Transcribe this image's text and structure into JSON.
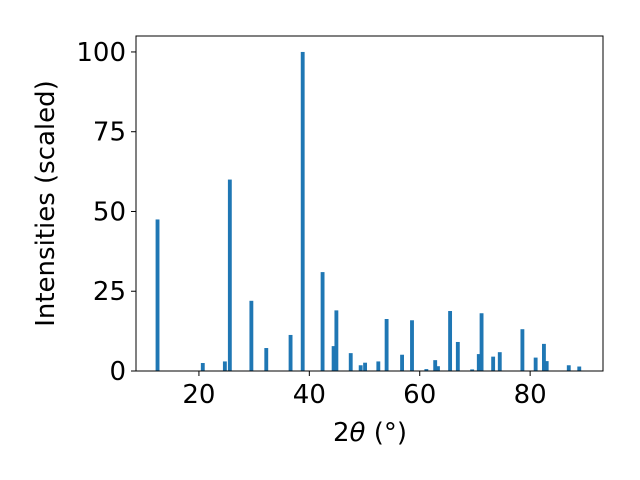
{
  "chart_data": {
    "type": "bar",
    "xlabel_main": "2",
    "xlabel_theta": "θ",
    "xlabel_unit": " (°)",
    "ylabel": "Intensities (scaled)",
    "xlim": [
      8.6,
      93.2
    ],
    "ylim": [
      0,
      105
    ],
    "grid": false,
    "bar_color": "#1f77b4",
    "bar_width_units": 0.7,
    "x_ticks": [
      20,
      40,
      60,
      80
    ],
    "y_ticks": [
      0,
      25,
      50,
      75,
      100
    ],
    "x_tick_labels": [
      "20",
      "40",
      "60",
      "80"
    ],
    "y_tick_labels": [
      "0",
      "25",
      "50",
      "75",
      "100"
    ],
    "x": [
      12.5,
      20.7,
      24.7,
      25.6,
      29.5,
      32.2,
      36.6,
      38.8,
      42.4,
      44.4,
      44.9,
      47.5,
      49.3,
      50.1,
      52.5,
      54.0,
      56.8,
      58.6,
      61.2,
      62.8,
      63.3,
      65.5,
      66.9,
      69.5,
      70.7,
      71.2,
      73.3,
      74.5,
      78.6,
      81.0,
      82.5,
      83.0,
      87.0,
      88.9
    ],
    "values": [
      47.5,
      2.5,
      3,
      60,
      22,
      7.2,
      11.3,
      100,
      31,
      7.8,
      19,
      5.6,
      1.8,
      2.6,
      3,
      16.3,
      5.1,
      15.9,
      0.6,
      3.4,
      1.5,
      18.8,
      9.1,
      0.5,
      5.3,
      18.1,
      4.5,
      5.9,
      13.1,
      4.2,
      8.5,
      3.1,
      1.8,
      1.4
    ]
  }
}
